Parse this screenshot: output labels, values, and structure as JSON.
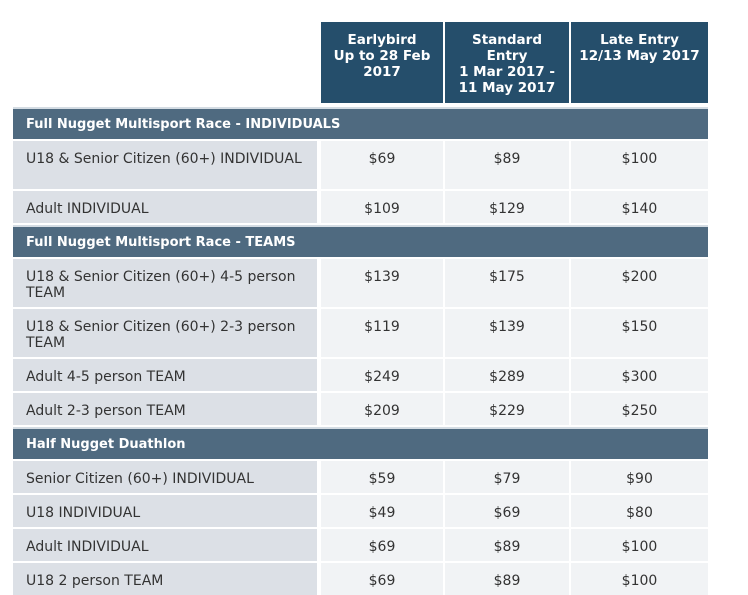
{
  "headers": [
    {
      "lines": [
        "Earlybird",
        "Up to 28 Feb",
        "2017"
      ]
    },
    {
      "lines": [
        "Standard",
        "Entry",
        "1 Mar 2017 -",
        "11 May 2017"
      ]
    },
    {
      "lines": [
        "Late Entry",
        "12/13 May 2017"
      ]
    }
  ],
  "sections": [
    {
      "title": "Full Nugget Multisport Race - INDIVIDUALS",
      "rows": [
        {
          "label": "U18 & Senior Citizen (60+) INDIVIDUAL",
          "prices": [
            "$69",
            "$89",
            "$100"
          ]
        },
        {
          "label": "Adult INDIVIDUAL",
          "prices": [
            "$109",
            "$129",
            "$140"
          ]
        }
      ]
    },
    {
      "title": "Full Nugget Multisport Race - TEAMS",
      "rows": [
        {
          "label": "U18 & Senior Citizen (60+) 4-5 person TEAM",
          "prices": [
            "$139",
            "$175",
            "$200"
          ]
        },
        {
          "label": "U18 & Senior Citizen (60+) 2-3 person TEAM",
          "prices": [
            "$119",
            "$139",
            "$150"
          ]
        },
        {
          "label": "Adult 4-5 person TEAM",
          "prices": [
            "$249",
            "$289",
            "$300"
          ]
        },
        {
          "label": "Adult 2-3 person TEAM",
          "prices": [
            "$209",
            "$229",
            "$250"
          ]
        }
      ]
    },
    {
      "title": "Half Nugget Duathlon",
      "rows": [
        {
          "label": "Senior Citizen (60+) INDIVIDUAL",
          "prices": [
            "$59",
            "$79",
            "$90"
          ]
        },
        {
          "label": "U18 INDIVIDUAL",
          "prices": [
            "$49",
            "$69",
            "$80"
          ]
        },
        {
          "label": "Adult INDIVIDUAL",
          "prices": [
            "$69",
            "$89",
            "$100"
          ]
        },
        {
          "label": "U18 2 person TEAM",
          "prices": [
            "$69",
            "$89",
            "$100"
          ]
        }
      ]
    }
  ]
}
